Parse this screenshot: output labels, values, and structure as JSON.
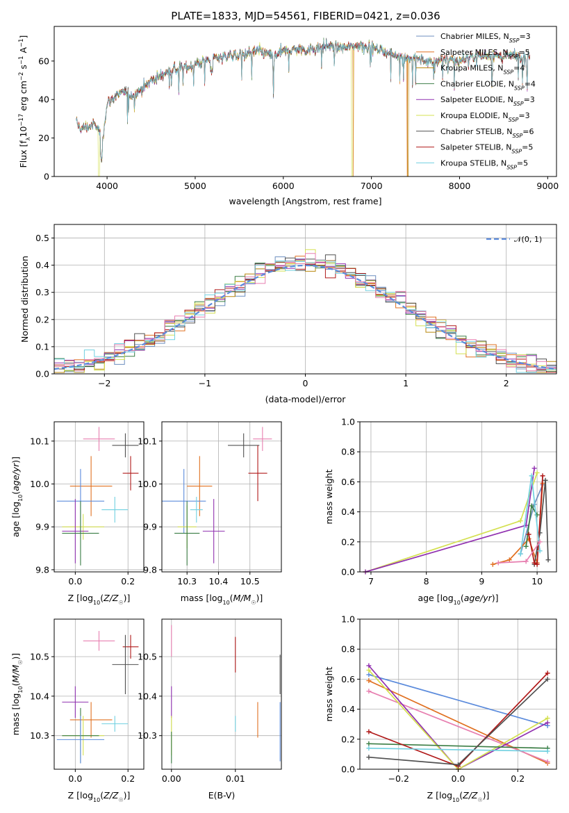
{
  "figure": {
    "title": "PLATE=1833, MJD=54561, FIBERID=0421, z=0.036"
  },
  "palette": {
    "Chabrier MILES": "#6c8ebf",
    "Salpeter MILES": "#e07020",
    "Kroupa MILES": "#b8860b",
    "Chabrier ELODIE": "#3a7d44",
    "Salpeter ELODIE": "#9030b0",
    "Kroupa ELODIE": "#d4e050",
    "Chabrier STELIB": "#505050",
    "Salpeter STELIB": "#b01818",
    "Kroupa STELIB": "#70d0e0",
    "pink": "#e77fb0",
    "blue": "#5b8bdc",
    "normal_curve": "#5b8bdc"
  },
  "chart_data": [
    {
      "type": "line",
      "panel": "spectrum",
      "xlabel": "wavelength [Angstrom, rest frame]",
      "ylabel": "Flux [f_λ 10^-17 erg cm^-2 s^-1 A^-1]",
      "xlim": [
        3400,
        9100
      ],
      "ylim": [
        0,
        78
      ],
      "xticks": [
        4000,
        5000,
        6000,
        7000,
        8000,
        9000
      ],
      "yticks": [
        0,
        20,
        40,
        60
      ],
      "grid": false,
      "legend_position": "top-right",
      "spectrum_envelope": {
        "x": [
          3650,
          3700,
          3800,
          3850,
          3900,
          3950,
          4000,
          4050,
          4100,
          4200,
          4300,
          4400,
          4500,
          4600,
          4700,
          4800,
          4900,
          5000,
          5100,
          5200,
          5300,
          5400,
          5500,
          5600,
          5700,
          5800,
          5900,
          6000,
          6100,
          6200,
          6300,
          6400,
          6500,
          6600,
          6700,
          6800,
          6900,
          7000,
          7100,
          7200,
          7300,
          7400,
          7500,
          7600,
          7700,
          7800,
          7900,
          8000,
          8100,
          8200,
          8300,
          8400,
          8500,
          8600,
          8700,
          8800
        ],
        "y": [
          28,
          25,
          26,
          27,
          25,
          20,
          38,
          40,
          42,
          44,
          42,
          46,
          50,
          52,
          55,
          56,
          57,
          58,
          60,
          62,
          62,
          63,
          63,
          64,
          65,
          64,
          63,
          65,
          66,
          66,
          66,
          67,
          68,
          67,
          67,
          68,
          68,
          67,
          66,
          64,
          63,
          62,
          61,
          60,
          60,
          61,
          61,
          60,
          62,
          63,
          63,
          63,
          62,
          63,
          62,
          62
        ]
      },
      "series": [
        {
          "name": "Chabrier MILES, N_SSP=3",
          "label_main": "Chabrier MILES, N",
          "label_sub": "SSP",
          "label_end": "=3"
        },
        {
          "name": "Salpeter MILES, N_SSP=5",
          "label_main": "Salpeter MILES, N",
          "label_sub": "SSP",
          "label_end": "=5"
        },
        {
          "name": "Kroupa MILES, N_SSP=4",
          "label_main": "Kroupa MILES, N",
          "label_sub": "SSP",
          "label_end": "=4"
        },
        {
          "name": "Chabrier ELODIE, N_SSP=4",
          "label_main": "Chabrier ELODIE, N",
          "label_sub": "SSP",
          "label_end": "=4"
        },
        {
          "name": "Salpeter ELODIE, N_SSP=3",
          "label_main": "Salpeter ELODIE, N",
          "label_sub": "SSP",
          "label_end": "=3"
        },
        {
          "name": "Kroupa ELODIE, N_SSP=3",
          "label_main": "Kroupa ELODIE, N",
          "label_sub": "SSP",
          "label_end": "=3"
        },
        {
          "name": "Chabrier STELIB, N_SSP=6",
          "label_main": "Chabrier STELIB, N",
          "label_sub": "SSP",
          "label_end": "=6"
        },
        {
          "name": "Salpeter STELIB, N_SSP=5",
          "label_main": "Salpeter STELIB, N",
          "label_sub": "SSP",
          "label_end": "=5"
        },
        {
          "name": "Kroupa STELIB, N_SSP=5",
          "label_main": "Kroupa STELIB, N",
          "label_sub": "SSP",
          "label_end": "=5"
        }
      ]
    },
    {
      "type": "histogram",
      "panel": "residuals",
      "xlabel": "(data-model)/error",
      "ylabel": "Normed distribution",
      "xlim": [
        -2.5,
        2.5
      ],
      "ylim": [
        0,
        0.55
      ],
      "xticks": [
        -2,
        -1,
        0,
        1,
        2
      ],
      "yticks": [
        0.0,
        0.1,
        0.2,
        0.3,
        0.4,
        0.5
      ],
      "grid": true,
      "legend_position": "top-right",
      "normal_label": "𝒩(0, 1)",
      "bin_width": 0.1
    },
    {
      "type": "errorbar",
      "panel": "Z vs age",
      "xlabel": "Z [log10(Z/Z☉)]",
      "ylabel": "age [log10(age/yr)]",
      "xlim": [
        -0.08,
        0.26
      ],
      "ylim": [
        9.795,
        10.145
      ],
      "xticks": [
        0.0,
        0.2
      ],
      "yticks": [
        9.8,
        9.9,
        10.0,
        10.1
      ],
      "grid": true,
      "points": [
        {
          "x": 0.09,
          "y": 10.105,
          "xerr": 0.06,
          "yerr": 0.028,
          "color": "pink"
        },
        {
          "x": 0.19,
          "y": 10.09,
          "xerr": 0.05,
          "yerr": 0.028,
          "color": "Chabrier STELIB"
        },
        {
          "x": 0.21,
          "y": 10.025,
          "xerr": 0.03,
          "yerr": 0.04,
          "color": "Salpeter STELIB"
        },
        {
          "x": 0.06,
          "y": 9.995,
          "xerr": 0.08,
          "yerr": 0.07,
          "color": "Salpeter MILES"
        },
        {
          "x": 0.02,
          "y": 9.96,
          "xerr": 0.09,
          "yerr": 0.075,
          "color": "blue"
        },
        {
          "x": 0.15,
          "y": 9.94,
          "xerr": 0.05,
          "yerr": 0.03,
          "color": "Kroupa STELIB"
        },
        {
          "x": 0.03,
          "y": 9.9,
          "xerr": 0.08,
          "yerr": 0.03,
          "color": "Kroupa ELODIE"
        },
        {
          "x": 0.0,
          "y": 9.89,
          "xerr": 0.05,
          "yerr": 0.075,
          "color": "Salpeter ELODIE"
        },
        {
          "x": 0.02,
          "y": 9.885,
          "xerr": 0.07,
          "yerr": 0.075,
          "color": "Chabrier ELODIE"
        }
      ]
    },
    {
      "type": "errorbar",
      "panel": "mass vs age",
      "xlabel": "mass [log10(M/M☉)]",
      "ylabel": "",
      "xlim": [
        10.22,
        10.6
      ],
      "ylim": [
        9.795,
        10.145
      ],
      "xticks": [
        10.3,
        10.4,
        10.5
      ],
      "yticks": [
        9.8,
        9.9,
        10.0,
        10.1
      ],
      "grid": true,
      "points": [
        {
          "x": 10.54,
          "y": 10.105,
          "xerr": 0.03,
          "yerr": 0.028,
          "color": "pink"
        },
        {
          "x": 10.48,
          "y": 10.09,
          "xerr": 0.05,
          "yerr": 0.028,
          "color": "Chabrier STELIB"
        },
        {
          "x": 10.525,
          "y": 10.025,
          "xerr": 0.03,
          "yerr": 0.065,
          "color": "Salpeter STELIB"
        },
        {
          "x": 10.34,
          "y": 9.995,
          "xerr": 0.04,
          "yerr": 0.07,
          "color": "Salpeter MILES"
        },
        {
          "x": 10.29,
          "y": 9.96,
          "xerr": 0.07,
          "yerr": 0.075,
          "color": "blue"
        },
        {
          "x": 10.33,
          "y": 9.94,
          "xerr": 0.02,
          "yerr": 0.03,
          "color": "Kroupa STELIB"
        },
        {
          "x": 10.3,
          "y": 9.9,
          "xerr": 0.03,
          "yerr": 0.05,
          "color": "Kroupa ELODIE"
        },
        {
          "x": 10.385,
          "y": 9.89,
          "xerr": 0.035,
          "yerr": 0.075,
          "color": "Salpeter ELODIE"
        },
        {
          "x": 10.3,
          "y": 9.885,
          "xerr": 0.04,
          "yerr": 0.075,
          "color": "Chabrier ELODIE"
        }
      ]
    },
    {
      "type": "line",
      "panel": "age vs mass weight",
      "xlabel": "age [log10(age/yr)]",
      "ylabel": "mass weight",
      "xlim": [
        6.8,
        10.35
      ],
      "ylim": [
        0,
        1.0
      ],
      "xticks": [
        7,
        8,
        9,
        10
      ],
      "yticks": [
        0.0,
        0.2,
        0.4,
        0.6,
        0.8,
        1.0
      ],
      "grid": true,
      "series": [
        {
          "color": "Chabrier MILES",
          "x": [
            9.7,
            9.95,
            10.1
          ],
          "y": [
            0.12,
            0.45,
            0.58
          ]
        },
        {
          "color": "Salpeter MILES",
          "x": [
            9.2,
            9.5,
            9.85,
            10.0,
            10.1
          ],
          "y": [
            0.05,
            0.08,
            0.22,
            0.06,
            0.59
          ]
        },
        {
          "color": "Kroupa ELODIE",
          "x": [
            6.9,
            9.7,
            10.0
          ],
          "y": [
            0.0,
            0.34,
            0.66
          ]
        },
        {
          "color": "Salpeter ELODIE",
          "x": [
            6.9,
            9.8,
            9.95
          ],
          "y": [
            0.0,
            0.31,
            0.69
          ]
        },
        {
          "color": "Chabrier ELODIE",
          "x": [
            9.8,
            9.9,
            10.0
          ],
          "y": [
            0.17,
            0.44,
            0.38
          ]
        },
        {
          "color": "Chabrier STELIB",
          "x": [
            9.95,
            10.05,
            10.15,
            10.2
          ],
          "y": [
            0.05,
            0.26,
            0.61,
            0.08
          ]
        },
        {
          "color": "Salpeter STELIB",
          "x": [
            9.85,
            9.95,
            10.0,
            10.1
          ],
          "y": [
            0.25,
            0.06,
            0.05,
            0.64
          ]
        },
        {
          "color": "Kroupa STELIB",
          "x": [
            9.7,
            9.9,
            10.05
          ],
          "y": [
            0.12,
            0.64,
            0.14
          ]
        },
        {
          "color": "pink",
          "x": [
            9.3,
            9.8,
            10.05
          ],
          "y": [
            0.06,
            0.07,
            0.2
          ]
        }
      ]
    },
    {
      "type": "errorbar",
      "panel": "Z vs mass",
      "xlabel": "Z [log10(Z/Z☉)]",
      "ylabel": "mass [log10(M/M☉)]",
      "xlim": [
        -0.08,
        0.26
      ],
      "ylim": [
        10.215,
        10.595
      ],
      "xticks": [
        0.0,
        0.2
      ],
      "yticks": [
        10.3,
        10.4,
        10.5
      ],
      "grid": true,
      "points": [
        {
          "x": 0.09,
          "y": 10.54,
          "xerr": 0.06,
          "yerr": 0.025,
          "color": "pink"
        },
        {
          "x": 0.21,
          "y": 10.525,
          "xerr": 0.03,
          "yerr": 0.03,
          "color": "Salpeter STELIB"
        },
        {
          "x": 0.19,
          "y": 10.48,
          "xerr": 0.05,
          "yerr": 0.075,
          "color": "Chabrier STELIB"
        },
        {
          "x": 0.0,
          "y": 10.385,
          "xerr": 0.05,
          "yerr": 0.04,
          "color": "Salpeter ELODIE"
        },
        {
          "x": 0.06,
          "y": 10.34,
          "xerr": 0.08,
          "yerr": 0.045,
          "color": "Salpeter MILES"
        },
        {
          "x": 0.15,
          "y": 10.33,
          "xerr": 0.05,
          "yerr": 0.02,
          "color": "Kroupa STELIB"
        },
        {
          "x": 0.03,
          "y": 10.3,
          "xerr": 0.08,
          "yerr": 0.05,
          "color": "Kroupa ELODIE"
        },
        {
          "x": 0.02,
          "y": 10.3,
          "xerr": 0.07,
          "yerr": 0.07,
          "color": "Chabrier ELODIE"
        },
        {
          "x": 0.02,
          "y": 10.29,
          "xerr": 0.09,
          "yerr": 0.06,
          "color": "blue"
        }
      ]
    },
    {
      "type": "errorbar",
      "panel": "E(B-V) vs mass",
      "xlabel": "E(B-V)",
      "ylabel": "",
      "xlim": [
        -0.0015,
        0.0172
      ],
      "ylim": [
        10.215,
        10.595
      ],
      "xticks": [
        0.0,
        0.01
      ],
      "yticks": [
        10.3,
        10.4,
        10.5
      ],
      "grid": true,
      "points": [
        {
          "x": 0.0,
          "y": 10.54,
          "xerr": 0,
          "yerr": 0.04,
          "color": "pink"
        },
        {
          "x": 0.01,
          "y": 10.505,
          "xerr": 0,
          "yerr": 0.045,
          "color": "Salpeter STELIB"
        },
        {
          "x": 0.017,
          "y": 10.455,
          "xerr": 0,
          "yerr": 0.05,
          "color": "Chabrier STELIB"
        },
        {
          "x": 0.0,
          "y": 10.385,
          "xerr": 0,
          "yerr": 0.04,
          "color": "Salpeter ELODIE"
        },
        {
          "x": 0.0135,
          "y": 10.34,
          "xerr": 0,
          "yerr": 0.045,
          "color": "Salpeter MILES"
        },
        {
          "x": 0.01,
          "y": 10.33,
          "xerr": 0,
          "yerr": 0.02,
          "color": "Kroupa STELIB"
        },
        {
          "x": 0.0,
          "y": 10.3,
          "xerr": 0,
          "yerr": 0.05,
          "color": "Kroupa ELODIE"
        },
        {
          "x": 0.0,
          "y": 10.27,
          "xerr": 0,
          "yerr": 0.04,
          "color": "Chabrier ELODIE"
        },
        {
          "x": 0.017,
          "y": 10.31,
          "xerr": 0,
          "yerr": 0.075,
          "color": "blue"
        }
      ]
    },
    {
      "type": "line",
      "panel": "Z vs mass weight",
      "xlabel": "Z [log10(Z/Z☉)]",
      "ylabel": "mass weight",
      "xlim": [
        -0.33,
        0.33
      ],
      "ylim": [
        0,
        1.0
      ],
      "xticks": [
        -0.2,
        0.0,
        0.2
      ],
      "yticks": [
        0.0,
        0.2,
        0.4,
        0.6,
        0.8,
        1.0
      ],
      "grid": true,
      "series": [
        {
          "color": "blue",
          "x": [
            -0.3,
            0.3
          ],
          "y": [
            0.63,
            0.29
          ]
        },
        {
          "color": "Salpeter MILES",
          "x": [
            -0.3,
            0.3
          ],
          "y": [
            0.59,
            0.04
          ]
        },
        {
          "color": "pink",
          "x": [
            -0.3,
            0.3
          ],
          "y": [
            0.52,
            0.05
          ]
        },
        {
          "color": "Salpeter ELODIE",
          "x": [
            -0.3,
            0.0,
            0.3
          ],
          "y": [
            0.69,
            0.0,
            0.31
          ]
        },
        {
          "color": "Kroupa ELODIE",
          "x": [
            -0.3,
            0.0,
            0.3
          ],
          "y": [
            0.66,
            0.0,
            0.34
          ]
        },
        {
          "color": "Chabrier ELODIE",
          "x": [
            -0.3,
            0.3
          ],
          "y": [
            0.17,
            0.14
          ]
        },
        {
          "color": "Salpeter STELIB",
          "x": [
            -0.3,
            0.0,
            0.3
          ],
          "y": [
            0.25,
            0.02,
            0.64
          ]
        },
        {
          "color": "Chabrier STELIB",
          "x": [
            -0.3,
            0.0,
            0.3
          ],
          "y": [
            0.08,
            0.03,
            0.6
          ]
        },
        {
          "color": "Kroupa STELIB",
          "x": [
            -0.3,
            0.3
          ],
          "y": [
            0.14,
            0.12
          ]
        }
      ]
    }
  ]
}
